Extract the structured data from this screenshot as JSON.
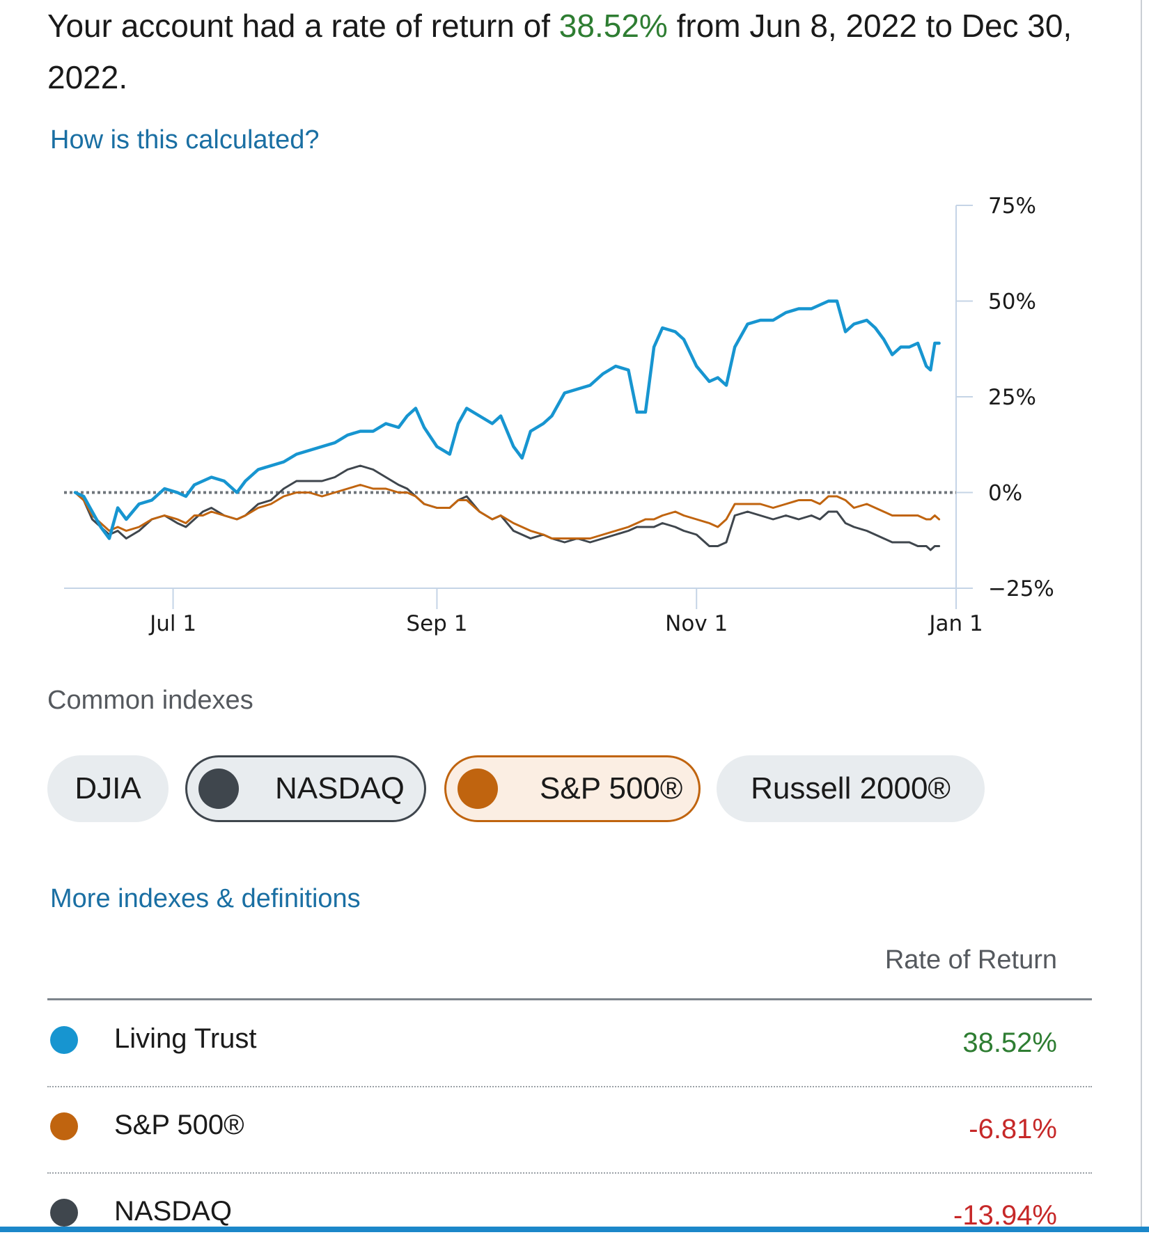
{
  "summary": {
    "prefix": "Your account had a rate of return of ",
    "rate": "38.52%",
    "middle": " from Jun 8, 2022 to Dec 30, 2022."
  },
  "links": {
    "calc": "How is this calculated?",
    "more": "More indexes & definitions"
  },
  "colors": {
    "living_trust": "#1795d0",
    "sp500": "#c0640f",
    "nasdaq": "#3f464d",
    "positive": "#2e7d32",
    "negative": "#c62828",
    "link": "#1a6fa3"
  },
  "chart_data": {
    "type": "line",
    "title": "",
    "xlabel": "",
    "ylabel": "",
    "y_ticks": [
      "75%",
      "50%",
      "25%",
      "0%",
      "−25%"
    ],
    "y_tick_values": [
      75,
      50,
      25,
      0,
      -25
    ],
    "x_ticks": [
      "Jul 1",
      "Sep 1",
      "Nov 1",
      "Jan 1"
    ],
    "x_tick_days": [
      23,
      85,
      146,
      207
    ],
    "ylim": [
      -25,
      75
    ],
    "xlim_days": [
      0,
      207
    ],
    "baseline": 0,
    "series": [
      {
        "name": "Living Trust",
        "color": "#1795d0",
        "points": [
          [
            0,
            0
          ],
          [
            2,
            -1
          ],
          [
            4,
            -5
          ],
          [
            6,
            -9
          ],
          [
            8,
            -12
          ],
          [
            10,
            -4
          ],
          [
            12,
            -7
          ],
          [
            15,
            -3
          ],
          [
            18,
            -2
          ],
          [
            21,
            1
          ],
          [
            24,
            0
          ],
          [
            26,
            -1
          ],
          [
            28,
            2
          ],
          [
            30,
            3
          ],
          [
            32,
            4
          ],
          [
            35,
            3
          ],
          [
            38,
            0
          ],
          [
            40,
            3
          ],
          [
            43,
            6
          ],
          [
            46,
            7
          ],
          [
            49,
            8
          ],
          [
            52,
            10
          ],
          [
            55,
            11
          ],
          [
            58,
            12
          ],
          [
            61,
            13
          ],
          [
            64,
            15
          ],
          [
            67,
            16
          ],
          [
            70,
            16
          ],
          [
            73,
            18
          ],
          [
            76,
            17
          ],
          [
            78,
            20
          ],
          [
            80,
            22
          ],
          [
            82,
            17
          ],
          [
            85,
            12
          ],
          [
            88,
            10
          ],
          [
            90,
            18
          ],
          [
            92,
            22
          ],
          [
            95,
            20
          ],
          [
            98,
            18
          ],
          [
            100,
            20
          ],
          [
            103,
            12
          ],
          [
            105,
            9
          ],
          [
            107,
            16
          ],
          [
            110,
            18
          ],
          [
            112,
            20
          ],
          [
            115,
            26
          ],
          [
            118,
            27
          ],
          [
            121,
            28
          ],
          [
            124,
            31
          ],
          [
            127,
            33
          ],
          [
            130,
            32
          ],
          [
            132,
            21
          ],
          [
            134,
            21
          ],
          [
            136,
            38
          ],
          [
            138,
            43
          ],
          [
            141,
            42
          ],
          [
            143,
            40
          ],
          [
            146,
            33
          ],
          [
            149,
            29
          ],
          [
            151,
            30
          ],
          [
            153,
            28
          ],
          [
            155,
            38
          ],
          [
            158,
            44
          ],
          [
            161,
            45
          ],
          [
            164,
            45
          ],
          [
            167,
            47
          ],
          [
            170,
            48
          ],
          [
            173,
            48
          ],
          [
            175,
            49
          ],
          [
            177,
            50
          ],
          [
            179,
            50
          ],
          [
            181,
            42
          ],
          [
            183,
            44
          ],
          [
            186,
            45
          ],
          [
            188,
            43
          ],
          [
            190,
            40
          ],
          [
            192,
            36
          ],
          [
            194,
            38
          ],
          [
            196,
            38
          ],
          [
            198,
            39
          ],
          [
            200,
            33
          ],
          [
            201,
            32
          ],
          [
            202,
            39
          ],
          [
            203,
            39
          ]
        ]
      },
      {
        "name": "S&P 500®",
        "color": "#c0640f",
        "points": [
          [
            0,
            0
          ],
          [
            2,
            -2
          ],
          [
            4,
            -6
          ],
          [
            6,
            -8
          ],
          [
            8,
            -10
          ],
          [
            10,
            -9
          ],
          [
            12,
            -10
          ],
          [
            15,
            -9
          ],
          [
            18,
            -7
          ],
          [
            21,
            -6
          ],
          [
            24,
            -7
          ],
          [
            26,
            -8
          ],
          [
            28,
            -6
          ],
          [
            30,
            -6
          ],
          [
            32,
            -5
          ],
          [
            35,
            -6
          ],
          [
            38,
            -7
          ],
          [
            40,
            -6
          ],
          [
            43,
            -4
          ],
          [
            46,
            -3
          ],
          [
            49,
            -1
          ],
          [
            52,
            0
          ],
          [
            55,
            0
          ],
          [
            58,
            -1
          ],
          [
            61,
            0
          ],
          [
            64,
            1
          ],
          [
            67,
            2
          ],
          [
            70,
            1
          ],
          [
            73,
            1
          ],
          [
            76,
            0
          ],
          [
            78,
            0
          ],
          [
            80,
            -1
          ],
          [
            82,
            -3
          ],
          [
            85,
            -4
          ],
          [
            88,
            -4
          ],
          [
            90,
            -2
          ],
          [
            92,
            -2
          ],
          [
            95,
            -5
          ],
          [
            98,
            -7
          ],
          [
            100,
            -6
          ],
          [
            103,
            -8
          ],
          [
            105,
            -9
          ],
          [
            107,
            -10
          ],
          [
            110,
            -11
          ],
          [
            112,
            -12
          ],
          [
            115,
            -12
          ],
          [
            118,
            -12
          ],
          [
            121,
            -12
          ],
          [
            124,
            -11
          ],
          [
            127,
            -10
          ],
          [
            130,
            -9
          ],
          [
            132,
            -8
          ],
          [
            134,
            -7
          ],
          [
            136,
            -7
          ],
          [
            138,
            -6
          ],
          [
            141,
            -5
          ],
          [
            143,
            -6
          ],
          [
            146,
            -7
          ],
          [
            149,
            -8
          ],
          [
            151,
            -9
          ],
          [
            153,
            -7
          ],
          [
            155,
            -3
          ],
          [
            158,
            -3
          ],
          [
            161,
            -3
          ],
          [
            164,
            -4
          ],
          [
            167,
            -3
          ],
          [
            170,
            -2
          ],
          [
            173,
            -2
          ],
          [
            175,
            -3
          ],
          [
            177,
            -1
          ],
          [
            179,
            -1
          ],
          [
            181,
            -2
          ],
          [
            183,
            -4
          ],
          [
            186,
            -3
          ],
          [
            188,
            -4
          ],
          [
            190,
            -5
          ],
          [
            192,
            -6
          ],
          [
            194,
            -6
          ],
          [
            196,
            -6
          ],
          [
            198,
            -6
          ],
          [
            200,
            -7
          ],
          [
            201,
            -7
          ],
          [
            202,
            -6
          ],
          [
            203,
            -7
          ]
        ]
      },
      {
        "name": "NASDAQ",
        "color": "#3f464d",
        "points": [
          [
            0,
            0
          ],
          [
            2,
            -2
          ],
          [
            4,
            -7
          ],
          [
            6,
            -9
          ],
          [
            8,
            -11
          ],
          [
            10,
            -10
          ],
          [
            12,
            -12
          ],
          [
            15,
            -10
          ],
          [
            18,
            -7
          ],
          [
            21,
            -6
          ],
          [
            24,
            -8
          ],
          [
            26,
            -9
          ],
          [
            28,
            -7
          ],
          [
            30,
            -5
          ],
          [
            32,
            -4
          ],
          [
            35,
            -6
          ],
          [
            38,
            -7
          ],
          [
            40,
            -6
          ],
          [
            43,
            -3
          ],
          [
            46,
            -2
          ],
          [
            49,
            1
          ],
          [
            52,
            3
          ],
          [
            55,
            3
          ],
          [
            58,
            3
          ],
          [
            61,
            4
          ],
          [
            64,
            6
          ],
          [
            67,
            7
          ],
          [
            70,
            6
          ],
          [
            73,
            4
          ],
          [
            76,
            2
          ],
          [
            78,
            1
          ],
          [
            80,
            -1
          ],
          [
            82,
            -3
          ],
          [
            85,
            -4
          ],
          [
            88,
            -4
          ],
          [
            90,
            -2
          ],
          [
            92,
            -1
          ],
          [
            95,
            -5
          ],
          [
            98,
            -7
          ],
          [
            100,
            -6
          ],
          [
            103,
            -10
          ],
          [
            105,
            -11
          ],
          [
            107,
            -12
          ],
          [
            110,
            -11
          ],
          [
            112,
            -12
          ],
          [
            115,
            -13
          ],
          [
            118,
            -12
          ],
          [
            121,
            -13
          ],
          [
            124,
            -12
          ],
          [
            127,
            -11
          ],
          [
            130,
            -10
          ],
          [
            132,
            -9
          ],
          [
            134,
            -9
          ],
          [
            136,
            -9
          ],
          [
            138,
            -8
          ],
          [
            141,
            -9
          ],
          [
            143,
            -10
          ],
          [
            146,
            -11
          ],
          [
            149,
            -14
          ],
          [
            151,
            -14
          ],
          [
            153,
            -13
          ],
          [
            155,
            -6
          ],
          [
            158,
            -5
          ],
          [
            161,
            -6
          ],
          [
            164,
            -7
          ],
          [
            167,
            -6
          ],
          [
            170,
            -7
          ],
          [
            173,
            -6
          ],
          [
            175,
            -7
          ],
          [
            177,
            -5
          ],
          [
            179,
            -5
          ],
          [
            181,
            -8
          ],
          [
            183,
            -9
          ],
          [
            186,
            -10
          ],
          [
            188,
            -11
          ],
          [
            190,
            -12
          ],
          [
            192,
            -13
          ],
          [
            194,
            -13
          ],
          [
            196,
            -13
          ],
          [
            198,
            -14
          ],
          [
            200,
            -14
          ],
          [
            201,
            -15
          ],
          [
            202,
            -14
          ],
          [
            203,
            -14
          ]
        ]
      }
    ]
  },
  "indexes": {
    "label": "Common indexes",
    "pills": [
      "DJIA",
      "NASDAQ",
      "S&P 500®",
      "Russell 2000®"
    ]
  },
  "table": {
    "header": "Rate of Return",
    "rows": [
      {
        "name": "Living Trust",
        "value": "38.52%"
      },
      {
        "name": "S&P 500®",
        "value": "-6.81%"
      },
      {
        "name": "NASDAQ",
        "value": "-13.94%"
      }
    ]
  }
}
